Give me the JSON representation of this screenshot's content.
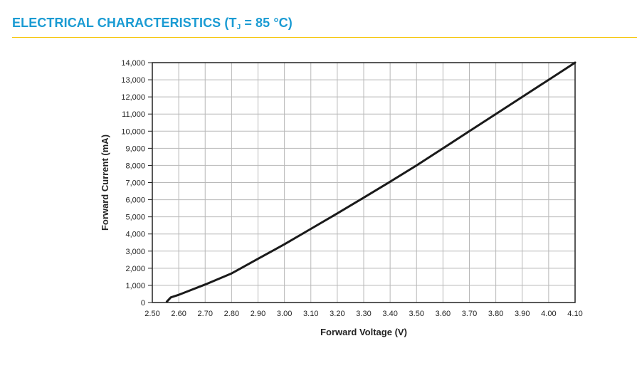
{
  "header": {
    "title_prefix": "ELECTRICAL CHARACTERISTICS (T",
    "title_sub": "J",
    "title_suffix": " = 85 °C)",
    "title_color": "#1a9bd3",
    "rule_color": "#f5c400"
  },
  "chart_data": {
    "type": "line",
    "title": "ELECTRICAL CHARACTERISTICS (TJ = 85 °C)",
    "xlabel": "Forward Voltage (V)",
    "ylabel": "Forward Current (mA)",
    "xlim": [
      2.5,
      4.1
    ],
    "ylim": [
      0,
      14000
    ],
    "grid": true,
    "legend": "none",
    "x_ticks": [
      "2.50",
      "2.60",
      "2.70",
      "2.80",
      "2.90",
      "3.00",
      "3.10",
      "3.20",
      "3.30",
      "3.40",
      "3.50",
      "3.60",
      "3.70",
      "3.80",
      "3.90",
      "4.00",
      "4.10"
    ],
    "y_ticks": [
      "0",
      "1,000",
      "2,000",
      "3,000",
      "4,000",
      "5,000",
      "6,000",
      "7,000",
      "8,000",
      "9,000",
      "10,000",
      "11,000",
      "12,000",
      "13,000",
      "14,000"
    ],
    "series": [
      {
        "color": "#1a1a1a",
        "x": [
          2.555,
          2.57,
          2.6,
          2.7,
          2.8,
          2.9,
          3.0,
          3.1,
          3.2,
          3.3,
          3.4,
          3.5,
          3.6,
          3.7,
          3.8,
          3.9,
          4.0,
          4.1
        ],
        "y": [
          50,
          300,
          450,
          1050,
          1700,
          2550,
          3400,
          4300,
          5200,
          6120,
          7050,
          8000,
          9000,
          10000,
          11000,
          12000,
          13000,
          14000
        ]
      }
    ]
  }
}
